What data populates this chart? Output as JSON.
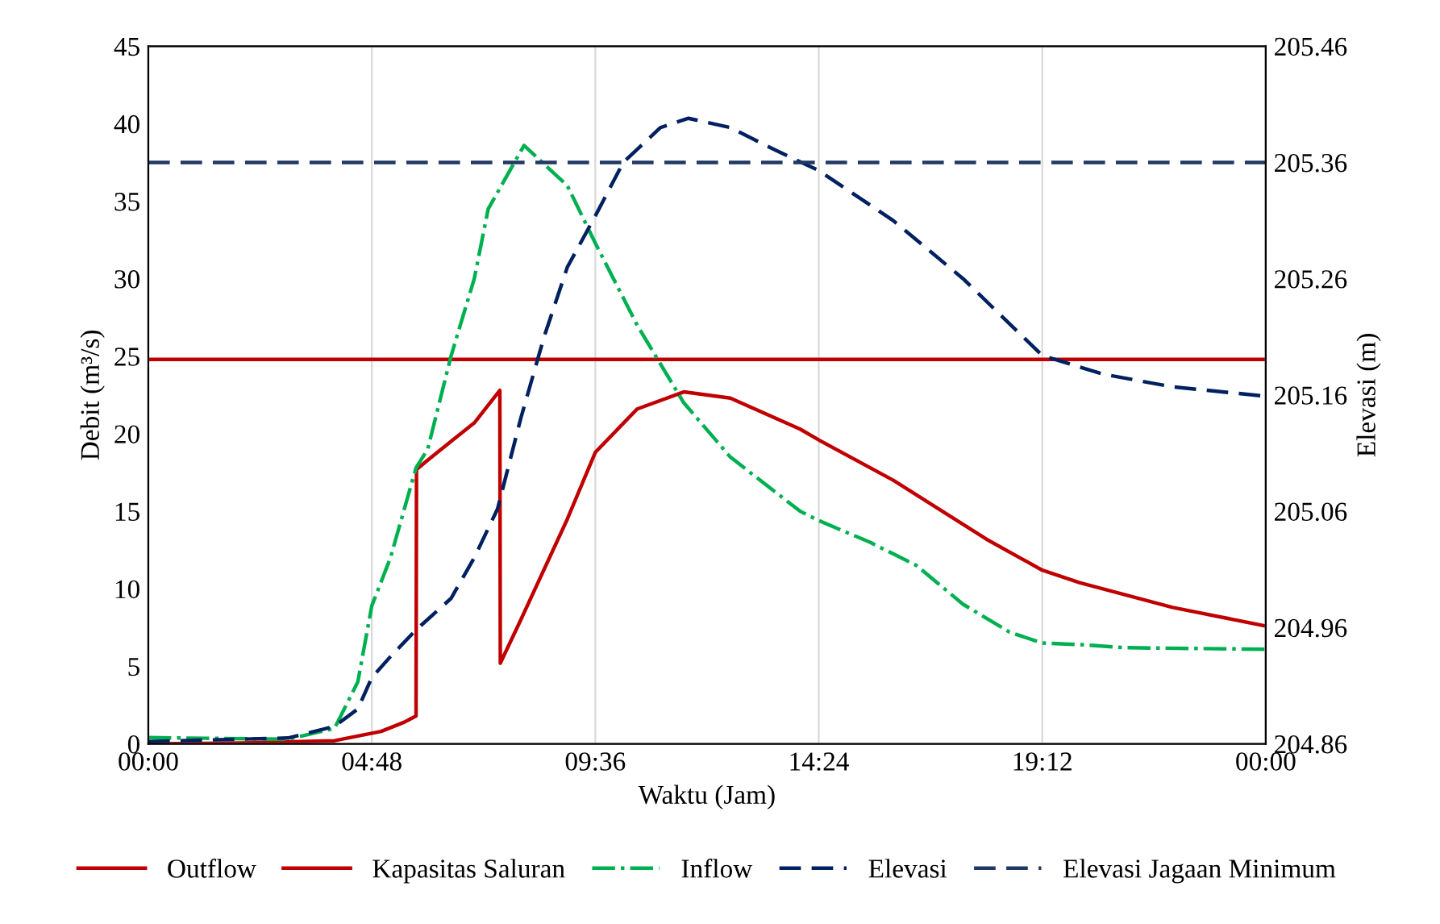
{
  "chart_data": {
    "type": "line",
    "xlabel": "Waktu (Jam)",
    "ylabel": "Debit (m³/s)",
    "y2label": "Elevasi (m)",
    "xlim": [
      0,
      24
    ],
    "xticks": [
      {
        "value": 0,
        "label": "00:00"
      },
      {
        "value": 4.8,
        "label": "04:48"
      },
      {
        "value": 9.6,
        "label": "09:36"
      },
      {
        "value": 14.4,
        "label": "14:24"
      },
      {
        "value": 19.2,
        "label": "19:12"
      },
      {
        "value": 24,
        "label": "00:00"
      }
    ],
    "ylim": [
      0,
      45
    ],
    "yticks": [
      0,
      5,
      10,
      15,
      20,
      25,
      30,
      35,
      40,
      45
    ],
    "y2lim": [
      204.86,
      205.46
    ],
    "y2ticks": [
      {
        "value": 204.86,
        "label": "204.86"
      },
      {
        "value": 204.96,
        "label": "204.96"
      },
      {
        "value": 205.06,
        "label": "205.06"
      },
      {
        "value": 205.16,
        "label": "205.16"
      },
      {
        "value": 205.26,
        "label": "205.26"
      },
      {
        "value": 205.36,
        "label": "205.36"
      },
      {
        "value": 205.46,
        "label": "205.46"
      }
    ],
    "grid": "x",
    "legend": "bottom",
    "marker": "none",
    "series": [
      {
        "name": "Outflow",
        "color": "#c00000",
        "line_style": "solid",
        "x": [
          0,
          2,
          4,
          5,
          5.5,
          5.75,
          5.76,
          6,
          6.5,
          7,
          7.55,
          7.56,
          8,
          9,
          9.6,
          10.5,
          11.5,
          12.5,
          14,
          14.4,
          16,
          18,
          19.2,
          20,
          22,
          24
        ],
        "values": [
          0,
          0.05,
          0.2,
          0.8,
          1.4,
          1.8,
          17.7,
          18.3,
          19.5,
          20.7,
          22.8,
          5.2,
          8,
          14.5,
          18.8,
          21.6,
          22.7,
          22.3,
          20.3,
          19.6,
          17,
          13.2,
          11.2,
          10.4,
          8.8,
          7.6
        ]
      },
      {
        "name": "Kapasitas Saluran",
        "color": "#c00000",
        "line_style": "solid",
        "x": [
          0,
          24
        ],
        "values": [
          24.8,
          24.8
        ]
      },
      {
        "name": "Inflow",
        "color": "#00b050",
        "line_style": "dashdot",
        "x": [
          0,
          3,
          4,
          4.5,
          4.8,
          5.2,
          5.75,
          6,
          6.5,
          7,
          7.3,
          8.07,
          9,
          9.6,
          10.5,
          11.5,
          12.5,
          14,
          14.4,
          15.5,
          16.5,
          17.5,
          18.5,
          19.2,
          20,
          21,
          24
        ],
        "values": [
          0.4,
          0.3,
          1,
          4,
          8.9,
          12,
          17.8,
          19,
          25,
          30,
          34.5,
          38.6,
          36,
          32.3,
          27,
          22,
          18.5,
          15,
          14.4,
          13,
          11.5,
          9,
          7.2,
          6.5,
          6.4,
          6.2,
          6.1
        ]
      },
      {
        "name": "Elevasi",
        "color": "#002060",
        "line_style": "dashed",
        "axis": "y2",
        "x": [
          0,
          3,
          4,
          4.5,
          4.8,
          5.2,
          5.75,
          6.5,
          7,
          7.5,
          8,
          8.5,
          9,
          9.6,
          10.2,
          11,
          11.6,
          12.5,
          13.5,
          14.4,
          16,
          17.5,
          19.2,
          20.5,
          22,
          24
        ],
        "values": [
          204.862,
          204.865,
          204.875,
          204.89,
          204.917,
          204.935,
          204.958,
          204.985,
          205.02,
          205.062,
          205.14,
          205.21,
          205.27,
          205.314,
          205.36,
          205.39,
          205.398,
          205.39,
          205.37,
          205.353,
          205.31,
          205.26,
          205.194,
          205.178,
          205.167,
          205.159
        ]
      },
      {
        "name": "Elevasi Jagaan Minimum",
        "color": "#203864",
        "line_style": "dashed",
        "axis": "y2",
        "x": [
          0,
          24
        ],
        "values": [
          205.36,
          205.36
        ]
      }
    ]
  }
}
